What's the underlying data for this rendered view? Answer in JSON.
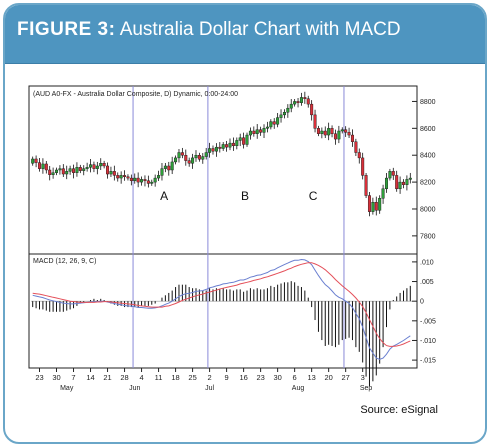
{
  "header": {
    "figure_label": "FIGURE 3:",
    "title": "Australia Dollar Chart with MACD"
  },
  "footer": {
    "source": "Source:  eSignal"
  },
  "colors": {
    "header_bg": "#4e95c0",
    "frame_border": "#6aa6c8",
    "candle_up": "#2e9e3a",
    "candle_down": "#d8303a",
    "macd_line": "#6a7fd0",
    "signal_line": "#e4505a",
    "divider": "#8a8ad8"
  },
  "chart_data": {
    "type": "candlestick",
    "price_panel": {
      "label": "(AUD A0-FX - Australia Dollar Composite, D) Dynamic, 0:00-24:00",
      "yticks": [
        "8800",
        "8600",
        "8400",
        "8200",
        "8000",
        "7800"
      ],
      "ytick_values": [
        0.88,
        0.86,
        0.84,
        0.82,
        0.8,
        0.78
      ],
      "ylim": [
        0.768,
        0.89
      ],
      "close": [
        0.8372,
        0.8345,
        0.83,
        0.8335,
        0.829,
        0.8255,
        0.827,
        0.829,
        0.83,
        0.826,
        0.828,
        0.83,
        0.827,
        0.831,
        0.8285,
        0.83,
        0.831,
        0.833,
        0.83,
        0.832,
        0.834,
        0.832,
        0.826,
        0.828,
        0.825,
        0.823,
        0.825,
        0.824,
        0.823,
        0.821,
        0.823,
        0.82,
        0.822,
        0.821,
        0.819,
        0.82,
        0.823,
        0.825,
        0.83,
        0.832,
        0.829,
        0.835,
        0.838,
        0.842,
        0.84,
        0.836,
        0.834,
        0.838,
        0.84,
        0.837,
        0.839,
        0.842,
        0.845,
        0.843,
        0.846,
        0.845,
        0.848,
        0.846,
        0.849,
        0.847,
        0.851,
        0.853,
        0.848,
        0.855,
        0.858,
        0.856,
        0.859,
        0.857,
        0.86,
        0.861,
        0.865,
        0.863,
        0.868,
        0.87,
        0.872,
        0.875,
        0.878,
        0.88,
        0.879,
        0.883,
        0.882,
        0.878,
        0.87,
        0.86,
        0.856,
        0.858,
        0.855,
        0.86,
        0.856,
        0.852,
        0.858,
        0.859,
        0.857,
        0.855,
        0.85,
        0.842,
        0.838,
        0.825,
        0.81,
        0.798,
        0.805,
        0.799,
        0.808,
        0.815,
        0.823,
        0.828,
        0.825,
        0.815,
        0.82,
        0.818,
        0.822,
        0.823
      ],
      "open": [
        0.834,
        0.8372,
        0.8345,
        0.83,
        0.8335,
        0.829,
        0.8255,
        0.827,
        0.829,
        0.83,
        0.826,
        0.828,
        0.83,
        0.827,
        0.831,
        0.8285,
        0.83,
        0.831,
        0.833,
        0.83,
        0.832,
        0.834,
        0.832,
        0.826,
        0.828,
        0.825,
        0.823,
        0.825,
        0.824,
        0.823,
        0.821,
        0.823,
        0.82,
        0.822,
        0.821,
        0.819,
        0.82,
        0.823,
        0.825,
        0.83,
        0.832,
        0.829,
        0.835,
        0.838,
        0.842,
        0.84,
        0.836,
        0.834,
        0.838,
        0.84,
        0.837,
        0.839,
        0.842,
        0.845,
        0.843,
        0.846,
        0.845,
        0.848,
        0.846,
        0.849,
        0.847,
        0.851,
        0.853,
        0.848,
        0.855,
        0.858,
        0.856,
        0.859,
        0.857,
        0.86,
        0.861,
        0.865,
        0.863,
        0.868,
        0.87,
        0.872,
        0.875,
        0.878,
        0.88,
        0.879,
        0.883,
        0.882,
        0.878,
        0.87,
        0.86,
        0.856,
        0.858,
        0.855,
        0.86,
        0.856,
        0.852,
        0.858,
        0.859,
        0.857,
        0.855,
        0.85,
        0.842,
        0.838,
        0.825,
        0.81,
        0.798,
        0.805,
        0.799,
        0.808,
        0.815,
        0.823,
        0.828,
        0.825,
        0.815,
        0.82,
        0.818,
        0.822
      ],
      "segments": [
        {
          "label": "A"
        },
        {
          "label": "B"
        },
        {
          "label": "C"
        }
      ]
    },
    "macd_panel": {
      "label": "MACD (12, 26, 9, C)",
      "yticks": [
        ".010",
        ".005",
        "0",
        "-.005",
        "-.010",
        "-.015"
      ],
      "ytick_values": [
        0.01,
        0.005,
        0,
        -0.005,
        -0.01,
        -0.015
      ],
      "ylim": [
        -0.0165,
        0.0115
      ],
      "macd": [
        0.0015,
        0.0013,
        0.0011,
        0.0009,
        0.0006,
        0.0003,
        0.0001,
        -0.0001,
        -0.0003,
        -0.0005,
        -0.0006,
        -0.0007,
        -0.0007,
        -0.0006,
        -0.0005,
        -0.0004,
        -0.0003,
        -0.0002,
        -0.0001,
        -0.0001,
        0.0,
        0.0,
        -0.0002,
        -0.0004,
        -0.0006,
        -0.0008,
        -0.0009,
        -0.0011,
        -0.0012,
        -0.0013,
        -0.0014,
        -0.0016,
        -0.0016,
        -0.0017,
        -0.0018,
        -0.0018,
        -0.0017,
        -0.0015,
        -0.0012,
        -0.0008,
        -0.0005,
        0.0,
        0.0006,
        0.0012,
        0.0016,
        0.0019,
        0.002,
        0.0022,
        0.0025,
        0.0026,
        0.0027,
        0.003,
        0.0034,
        0.0036,
        0.0039,
        0.0041,
        0.0044,
        0.0045,
        0.0047,
        0.0048,
        0.0051,
        0.0054,
        0.0054,
        0.0057,
        0.0061,
        0.0063,
        0.0066,
        0.0067,
        0.007,
        0.0073,
        0.0078,
        0.008,
        0.0085,
        0.0089,
        0.0093,
        0.0097,
        0.0101,
        0.0104,
        0.0104,
        0.0106,
        0.0105,
        0.0101,
        0.0093,
        0.0079,
        0.0065,
        0.0053,
        0.0042,
        0.0035,
        0.0026,
        0.0016,
        0.001,
        0.0006,
        0.0,
        -0.0006,
        -0.0016,
        -0.0031,
        -0.0045,
        -0.0066,
        -0.0093,
        -0.0119,
        -0.0132,
        -0.0145,
        -0.0148,
        -0.0145,
        -0.0135,
        -0.0122,
        -0.0114,
        -0.011,
        -0.0105,
        -0.01,
        -0.0094,
        -0.0088
      ],
      "signal": [
        0.002,
        0.0019,
        0.0018,
        0.0016,
        0.0014,
        0.0012,
        0.001,
        0.0008,
        0.0006,
        0.0004,
        0.0002,
        0.0,
        -0.0001,
        -0.0002,
        -0.0003,
        -0.0003,
        -0.0003,
        -0.0003,
        -0.0003,
        -0.0002,
        -0.0002,
        -0.0001,
        -0.0001,
        -0.0002,
        -0.0003,
        -0.0004,
        -0.0005,
        -0.0006,
        -0.0007,
        -0.0008,
        -0.0009,
        -0.0011,
        -0.0012,
        -0.0013,
        -0.0014,
        -0.0015,
        -0.0015,
        -0.0015,
        -0.0015,
        -0.0013,
        -0.0012,
        -0.0009,
        -0.0006,
        -0.0002,
        0.0002,
        0.0005,
        0.0008,
        0.0011,
        0.0014,
        0.0016,
        0.0018,
        0.0021,
        0.0023,
        0.0026,
        0.0028,
        0.0031,
        0.0033,
        0.0035,
        0.0037,
        0.0039,
        0.0041,
        0.0044,
        0.0046,
        0.0048,
        0.005,
        0.0053,
        0.0055,
        0.0057,
        0.006,
        0.0062,
        0.0065,
        0.0068,
        0.0071,
        0.0074,
        0.0077,
        0.0081,
        0.0084,
        0.0088,
        0.0091,
        0.0094,
        0.0096,
        0.0098,
        0.0098,
        0.0095,
        0.0091,
        0.0086,
        0.008,
        0.0072,
        0.0064,
        0.0055,
        0.0047,
        0.0039,
        0.0032,
        0.0025,
        0.0017,
        0.0008,
        -0.0002,
        -0.0014,
        -0.0029,
        -0.0047,
        -0.0064,
        -0.0082,
        -0.0095,
        -0.0106,
        -0.0113,
        -0.0115,
        -0.0115,
        -0.0114,
        -0.0112,
        -0.0109,
        -0.0105,
        -0.0101
      ]
    },
    "x_axis": {
      "ticks": [
        {
          "label": "23",
          "i": 2
        },
        {
          "label": "30",
          "i": 7
        },
        {
          "label": "7",
          "i": 12
        },
        {
          "label": "14",
          "i": 17
        },
        {
          "label": "21",
          "i": 22
        },
        {
          "label": "28",
          "i": 27
        },
        {
          "label": "4",
          "i": 32
        },
        {
          "label": "11",
          "i": 37
        },
        {
          "label": "18",
          "i": 42
        },
        {
          "label": "25",
          "i": 47
        },
        {
          "label": "2",
          "i": 52
        },
        {
          "label": "9",
          "i": 57
        },
        {
          "label": "16",
          "i": 62
        },
        {
          "label": "23",
          "i": 67
        },
        {
          "label": "30",
          "i": 72
        },
        {
          "label": "6",
          "i": 77
        },
        {
          "label": "13",
          "i": 82
        },
        {
          "label": "20",
          "i": 87
        },
        {
          "label": "27",
          "i": 92
        },
        {
          "label": "3",
          "i": 97
        }
      ],
      "months": [
        {
          "label": "May",
          "i": 10
        },
        {
          "label": "Jun",
          "i": 30
        },
        {
          "label": "Jul",
          "i": 52
        },
        {
          "label": "Aug",
          "i": 78
        },
        {
          "label": "Sep",
          "i": 98
        }
      ],
      "dividers_i": [
        30,
        52,
        92
      ]
    }
  }
}
